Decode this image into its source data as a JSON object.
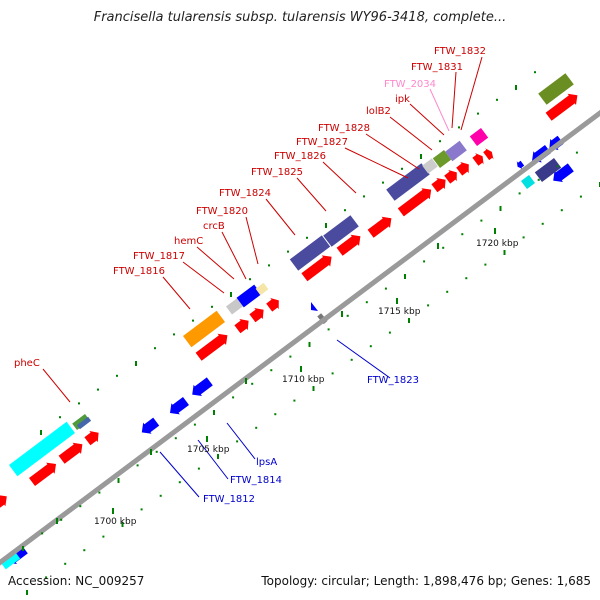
{
  "title": "Francisella tularensis subsp. tularensis WY96-3418, complete...",
  "footer": {
    "accession": "Accession: NC_009257",
    "summary": "Topology: circular; Length: 1,898,476 bp; Genes: 1,685"
  },
  "colors": {
    "backbone": "#9a9a9a",
    "forward_strand": "#ff0000",
    "reverse_strand": "#0000ff",
    "tick": "#008000",
    "label_red": "#cc0000",
    "label_blue": "#0000cc",
    "label_pink": "#ff88cc"
  },
  "scale_labels": [
    "1700 kbp",
    "1705 kbp",
    "1710 kbp",
    "1715 kbp",
    "1720 kbp"
  ],
  "gene_labels": [
    {
      "text": "FTW_1832",
      "strand": "forward"
    },
    {
      "text": "FTW_1831",
      "strand": "forward"
    },
    {
      "text": "FTW_2034",
      "strand": "pseudo"
    },
    {
      "text": "ipk",
      "strand": "forward"
    },
    {
      "text": "lolB2",
      "strand": "forward"
    },
    {
      "text": "FTW_1828",
      "strand": "forward"
    },
    {
      "text": "FTW_1827",
      "strand": "forward"
    },
    {
      "text": "FTW_1826",
      "strand": "forward"
    },
    {
      "text": "FTW_1825",
      "strand": "forward"
    },
    {
      "text": "FTW_1824",
      "strand": "forward"
    },
    {
      "text": "FTW_1820",
      "strand": "forward"
    },
    {
      "text": "crcB",
      "strand": "forward"
    },
    {
      "text": "hemC",
      "strand": "forward"
    },
    {
      "text": "FTW_1817",
      "strand": "forward"
    },
    {
      "text": "FTW_1816",
      "strand": "forward"
    },
    {
      "text": "pheC",
      "strand": "forward"
    },
    {
      "text": "FTW_1823",
      "strand": "reverse"
    },
    {
      "text": "lpsA",
      "strand": "reverse"
    },
    {
      "text": "FTW_1814",
      "strand": "reverse"
    },
    {
      "text": "FTW_1812",
      "strand": "reverse"
    }
  ]
}
